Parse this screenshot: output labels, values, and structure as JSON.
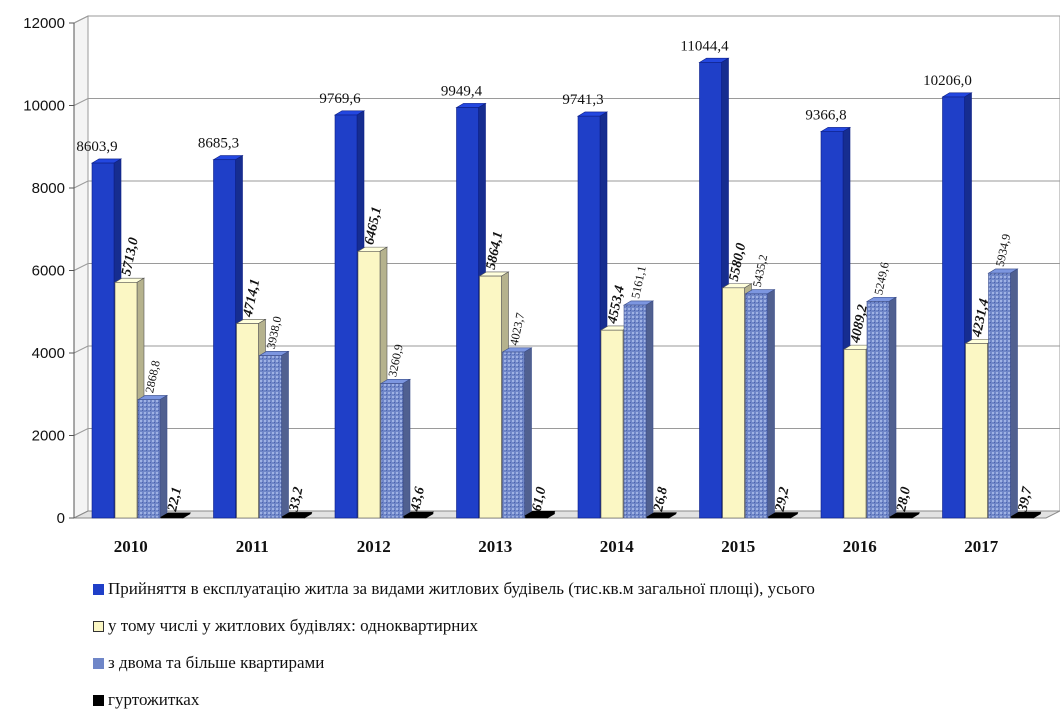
{
  "chart_data": {
    "type": "bar",
    "categories": [
      "2010",
      "2011",
      "2012",
      "2013",
      "2014",
      "2015",
      "2016",
      "2017"
    ],
    "series": [
      {
        "name": "Прийняття в експлуатацію житла за видами житлових будівель (тис.кв.м загальної площі), усього",
        "values": [
          8603.9,
          8685.3,
          9769.6,
          9949.4,
          9741.3,
          11044.4,
          9366.8,
          10206.0
        ],
        "labels": [
          "8603,9",
          "8685,3",
          "9769,6",
          "9949,4",
          "9741,3",
          "11044,4",
          "9366,8",
          "10206,0"
        ],
        "color": "#1f3fc8"
      },
      {
        "name": "у тому числі у житлових будівлях: одноквартирних",
        "values": [
          5713.0,
          4714.1,
          6465.1,
          5864.1,
          4553.4,
          5580.0,
          4089.2,
          4231.4
        ],
        "labels": [
          "5713,0",
          "4714,1",
          "6465,1",
          "5864,1",
          "4553,4",
          "5580,0",
          "4089,2",
          "4231,4"
        ],
        "color": "#fbf7c4"
      },
      {
        "name": "з двома та більше квартирами",
        "values": [
          2868.8,
          3938.0,
          3260.9,
          4023.7,
          5161.1,
          5435.2,
          5249.6,
          5934.9
        ],
        "labels": [
          "2868,8",
          "3938,0",
          "3260,9",
          "4023,7",
          "5161,1",
          "5435,2",
          "5249,6",
          "5934,9"
        ],
        "color": "#6f86c8"
      },
      {
        "name": "гуртожитках",
        "values": [
          22.1,
          33.2,
          43.6,
          61.0,
          26.8,
          29.2,
          28.0,
          39.7
        ],
        "labels": [
          "22,1",
          "33,2",
          "43,6",
          "61,0",
          "26,8",
          "29,2",
          "28,0",
          "39,7"
        ],
        "color": "#000000"
      }
    ],
    "yticks": [
      0,
      2000,
      4000,
      6000,
      8000,
      10000,
      12000
    ],
    "ylim": [
      0,
      12000
    ],
    "grid": true,
    "legend_position": "bottom"
  }
}
